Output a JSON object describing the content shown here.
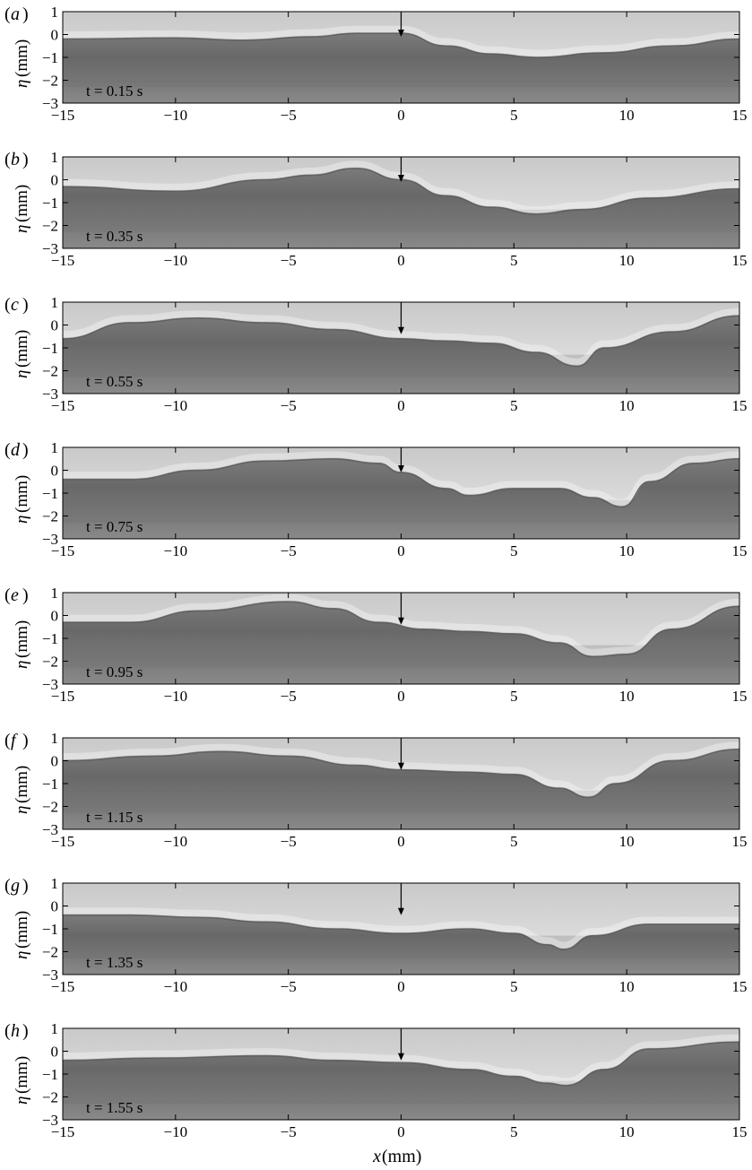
{
  "figure": {
    "xlabel_var": "x",
    "xlabel_unit": " (mm)",
    "ylabel_var": "η",
    "ylabel_unit": " (mm)",
    "xlim": [
      -15,
      15
    ],
    "ylim": [
      -3,
      1
    ],
    "x_ticks": [
      "−15",
      "−10",
      "−5",
      "0",
      "5",
      "10",
      "15"
    ],
    "y_ticks": [
      "1",
      "0",
      "−1",
      "−2",
      "−3"
    ],
    "arrow_x": 0,
    "panels": [
      {
        "letter": "a",
        "time": "t = 0.15 s",
        "arrow_tip_y": -0.1
      },
      {
        "letter": "b",
        "time": "t = 0.35 s",
        "arrow_tip_y": -0.1
      },
      {
        "letter": "c",
        "time": "t = 0.55 s",
        "arrow_tip_y": -0.4
      },
      {
        "letter": "d",
        "time": "t = 0.75 s",
        "arrow_tip_y": -0.1
      },
      {
        "letter": "e",
        "time": "t = 0.95 s",
        "arrow_tip_y": -0.4
      },
      {
        "letter": "f",
        "time": "t = 1.15 s",
        "arrow_tip_y": -0.4
      },
      {
        "letter": "g",
        "time": "t = 1.35 s",
        "arrow_tip_y": -0.4
      },
      {
        "letter": "h",
        "time": "t = 1.55 s",
        "arrow_tip_y": -0.4
      }
    ]
  },
  "colors": {
    "bright": "#f4f4f4",
    "mid": "#a6a6a6",
    "dark": "#6b6b6b",
    "deep": "#828282",
    "axis": "#000000"
  },
  "surface_profiles": [
    [
      [
        -15,
        -0.2
      ],
      [
        -10,
        -0.15
      ],
      [
        -7,
        -0.25
      ],
      [
        -4,
        -0.1
      ],
      [
        -2,
        0.05
      ],
      [
        0,
        0.05
      ],
      [
        2,
        -0.5
      ],
      [
        4,
        -0.85
      ],
      [
        6,
        -1.0
      ],
      [
        9,
        -0.8
      ],
      [
        12,
        -0.5
      ],
      [
        15,
        -0.2
      ]
    ],
    [
      [
        -15,
        -0.3
      ],
      [
        -10,
        -0.5
      ],
      [
        -6,
        0.0
      ],
      [
        -4,
        0.2
      ],
      [
        -2,
        0.5
      ],
      [
        0,
        0.0
      ],
      [
        2,
        -0.7
      ],
      [
        4,
        -1.2
      ],
      [
        6,
        -1.5
      ],
      [
        8,
        -1.3
      ],
      [
        11,
        -0.8
      ],
      [
        15,
        -0.4
      ]
    ],
    [
      [
        -15,
        -0.6
      ],
      [
        -12,
        0.1
      ],
      [
        -9,
        0.3
      ],
      [
        -6,
        0.1
      ],
      [
        -3,
        -0.2
      ],
      [
        0,
        -0.6
      ],
      [
        2,
        -0.7
      ],
      [
        4,
        -0.8
      ],
      [
        6,
        -1.2
      ],
      [
        7.8,
        -1.8
      ],
      [
        9,
        -1.0
      ],
      [
        12,
        -0.3
      ],
      [
        15,
        0.4
      ]
    ],
    [
      [
        -15,
        -0.4
      ],
      [
        -12,
        -0.4
      ],
      [
        -9,
        0.0
      ],
      [
        -6,
        0.4
      ],
      [
        -3,
        0.5
      ],
      [
        -1,
        0.3
      ],
      [
        0,
        -0.1
      ],
      [
        2,
        -0.8
      ],
      [
        3,
        -1.1
      ],
      [
        5,
        -0.8
      ],
      [
        7,
        -0.8
      ],
      [
        8.5,
        -1.2
      ],
      [
        9.8,
        -1.6
      ],
      [
        11,
        -0.5
      ],
      [
        13,
        0.3
      ],
      [
        15,
        0.5
      ]
    ],
    [
      [
        -15,
        -0.3
      ],
      [
        -12,
        -0.3
      ],
      [
        -9,
        0.2
      ],
      [
        -5,
        0.6
      ],
      [
        -3,
        0.3
      ],
      [
        -1,
        -0.3
      ],
      [
        1,
        -0.6
      ],
      [
        3,
        -0.7
      ],
      [
        5,
        -0.8
      ],
      [
        7,
        -1.2
      ],
      [
        8.5,
        -1.8
      ],
      [
        10,
        -1.7
      ],
      [
        12,
        -0.6
      ],
      [
        15,
        0.4
      ]
    ],
    [
      [
        -15,
        0.0
      ],
      [
        -11,
        0.2
      ],
      [
        -8,
        0.4
      ],
      [
        -5,
        0.2
      ],
      [
        -2,
        -0.2
      ],
      [
        0,
        -0.4
      ],
      [
        3,
        -0.5
      ],
      [
        5,
        -0.6
      ],
      [
        7,
        -1.2
      ],
      [
        8.3,
        -1.6
      ],
      [
        9.5,
        -1.0
      ],
      [
        12,
        0.0
      ],
      [
        15,
        0.5
      ]
    ],
    [
      [
        -15,
        -0.4
      ],
      [
        -12,
        -0.4
      ],
      [
        -9,
        -0.5
      ],
      [
        -6,
        -0.7
      ],
      [
        -3,
        -1.0
      ],
      [
        0,
        -1.2
      ],
      [
        3,
        -1.0
      ],
      [
        5,
        -1.2
      ],
      [
        6.5,
        -1.7
      ],
      [
        7.2,
        -1.9
      ],
      [
        8.5,
        -1.3
      ],
      [
        11,
        -0.8
      ],
      [
        15,
        -0.8
      ]
    ],
    [
      [
        -15,
        -0.4
      ],
      [
        -11,
        -0.3
      ],
      [
        -6,
        -0.2
      ],
      [
        -3,
        -0.4
      ],
      [
        0,
        -0.5
      ],
      [
        3,
        -0.8
      ],
      [
        5,
        -1.1
      ],
      [
        6.5,
        -1.4
      ],
      [
        7.3,
        -1.5
      ],
      [
        9,
        -0.8
      ],
      [
        11,
        0.1
      ],
      [
        15,
        0.4
      ]
    ]
  ]
}
